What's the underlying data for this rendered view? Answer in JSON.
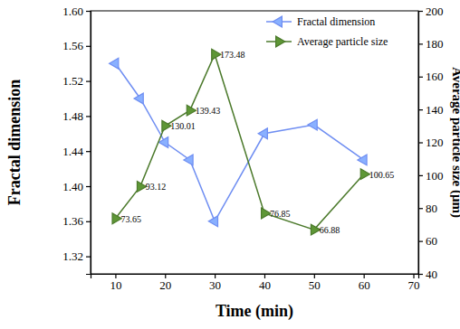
{
  "chart_data": {
    "type": "line",
    "xlabel": "Time (min)",
    "ylabel": "Fractal dimension",
    "y2label": "Average particle size (μm)",
    "x": [
      10,
      15,
      20,
      25,
      30,
      40,
      50,
      60
    ],
    "xlim": [
      5,
      71
    ],
    "xticks": [
      10,
      20,
      30,
      40,
      50,
      60,
      70
    ],
    "ylim": [
      1.3,
      1.6
    ],
    "yticks": [
      1.32,
      1.36,
      {
        "value": 1.4,
        "label": "1.40"
      },
      1.44,
      1.48,
      1.52,
      1.56,
      {
        "value": 1.6,
        "label": "1.60"
      }
    ],
    "y2lim": [
      40,
      200
    ],
    "y2ticks": [
      40,
      60,
      80,
      100,
      120,
      140,
      160,
      180,
      200
    ],
    "legend": "upper right",
    "series": [
      {
        "name": "Fractal dimension",
        "color": "#6f8ef2",
        "marker": "triangle-left",
        "axis": "y",
        "values": [
          1.54,
          1.5,
          1.45,
          1.43,
          1.36,
          1.46,
          1.47,
          1.43
        ]
      },
      {
        "name": "Average particle size",
        "color": "#4c7a2c",
        "marker": "triangle-right",
        "axis": "y2",
        "data_labels": true,
        "values": [
          73.65,
          93.12,
          130.01,
          139.43,
          173.48,
          76.85,
          66.88,
          100.65
        ]
      }
    ]
  }
}
